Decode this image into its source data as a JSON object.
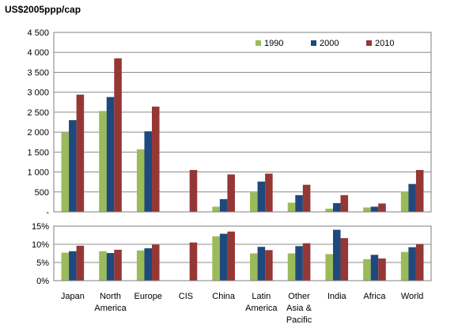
{
  "chart_data": [
    {
      "type": "bar",
      "title": "US$2005ppp/cap",
      "categories": [
        "Japan",
        "North America",
        "Europe",
        "CIS",
        "China",
        "Latin America",
        "Other Asia & Pacific",
        "India",
        "Africa",
        "World"
      ],
      "category_lines": [
        [
          "Japan"
        ],
        [
          "North",
          "America"
        ],
        [
          "Europe"
        ],
        [
          "CIS"
        ],
        [
          "China"
        ],
        [
          "Latin",
          "America"
        ],
        [
          "Other",
          "Asia &",
          "Pacific"
        ],
        [
          "India"
        ],
        [
          "Africa"
        ],
        [
          "World"
        ]
      ],
      "series": [
        {
          "name": "1990",
          "color": "#9bbb59",
          "values": [
            1990,
            2530,
            1570,
            null,
            130,
            490,
            230,
            80,
            110,
            510
          ]
        },
        {
          "name": "2000",
          "color": "#1f497d",
          "values": [
            2300,
            2880,
            2020,
            null,
            320,
            760,
            420,
            220,
            130,
            700
          ]
        },
        {
          "name": "2010",
          "color": "#953735",
          "values": [
            2940,
            3850,
            2640,
            1050,
            940,
            960,
            680,
            420,
            210,
            1050
          ]
        }
      ],
      "ylim": [
        0,
        4500
      ],
      "yticks": [
        0,
        500,
        1000,
        1500,
        2000,
        2500,
        3000,
        3500,
        4000,
        4500
      ],
      "ytick_labels": [
        "-",
        "500",
        "1 000",
        "1 500",
        "2 000",
        "2 500",
        "3 000",
        "3 500",
        "4 000",
        "4 500"
      ],
      "grid": true,
      "legend": "top-right"
    },
    {
      "type": "bar",
      "categories": [
        "Japan",
        "North America",
        "Europe",
        "CIS",
        "China",
        "Latin America",
        "Other Asia & Pacific",
        "India",
        "Africa",
        "World"
      ],
      "series": [
        {
          "name": "1990",
          "color": "#9bbb59",
          "values": [
            7.7,
            8.1,
            8.3,
            null,
            12.2,
            7.5,
            7.5,
            7.3,
            5.9,
            7.9
          ]
        },
        {
          "name": "2000",
          "color": "#1f497d",
          "values": [
            8.1,
            7.6,
            8.9,
            null,
            12.9,
            9.3,
            9.5,
            14.0,
            7.1,
            9.2
          ]
        },
        {
          "name": "2010",
          "color": "#953735",
          "values": [
            9.6,
            8.5,
            9.9,
            10.5,
            13.5,
            8.4,
            10.3,
            11.7,
            6.1,
            10.1
          ]
        }
      ],
      "ylim": [
        0,
        15
      ],
      "yticks": [
        0,
        5,
        10,
        15
      ],
      "ytick_labels": [
        "0%",
        "5%",
        "10%",
        "15%"
      ],
      "grid": true
    }
  ]
}
